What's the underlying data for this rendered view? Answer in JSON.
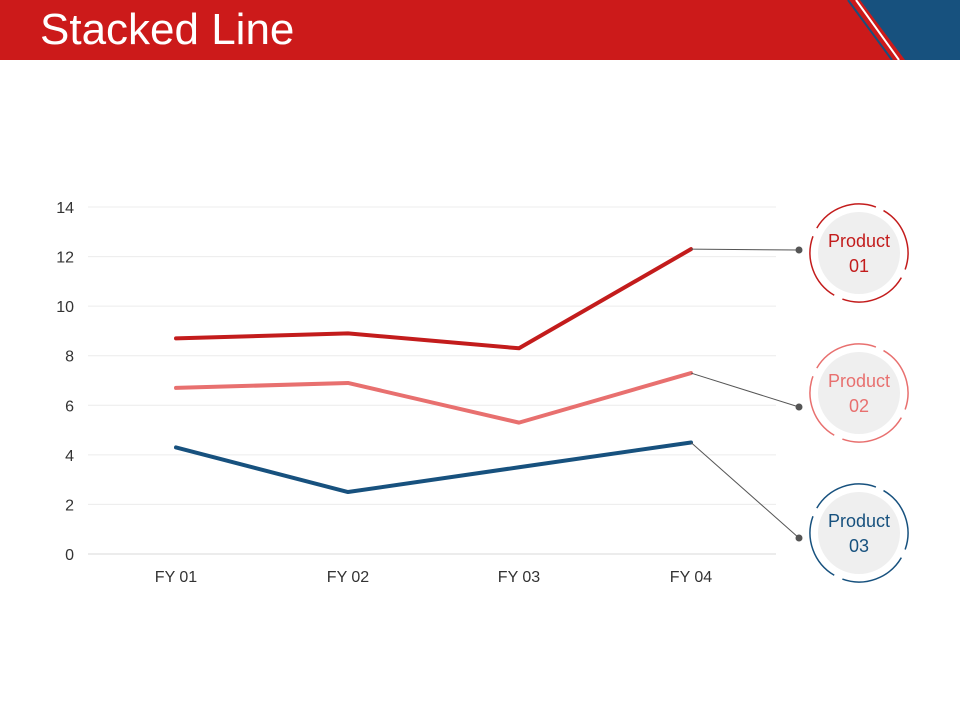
{
  "page": {
    "title": "Stacked Line"
  },
  "colors": {
    "header": "#cc1a1a",
    "accent_blue": "#17517e",
    "product01": "#c31c1c",
    "product02": "#e8706f",
    "product03": "#17517e"
  },
  "chart_data": {
    "type": "line",
    "categories": [
      "FY 01",
      "FY 02",
      "FY 03",
      "FY 04"
    ],
    "ylim": [
      0,
      14
    ],
    "yticks": [
      "0",
      "2",
      "4",
      "6",
      "8",
      "10",
      "12",
      "14"
    ],
    "grid": true,
    "legend_position": "right",
    "series": [
      {
        "name": "Product 01",
        "label_line1": "Product",
        "label_line2": "01",
        "color": "#c31c1c",
        "values": [
          8.7,
          8.9,
          8.3,
          12.3
        ]
      },
      {
        "name": "Product 02",
        "label_line1": "Product",
        "label_line2": "02",
        "color": "#e8706f",
        "values": [
          6.7,
          6.9,
          5.3,
          7.3
        ]
      },
      {
        "name": "Product 03",
        "label_line1": "Product",
        "label_line2": "03",
        "color": "#17517e",
        "values": [
          4.3,
          2.5,
          3.5,
          4.5
        ]
      }
    ]
  }
}
